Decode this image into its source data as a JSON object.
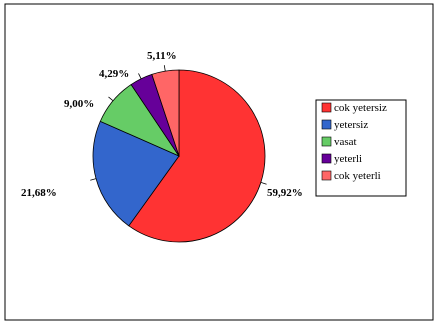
{
  "chart_data": {
    "type": "pie",
    "categories": [
      "cok yetersiz",
      "yetersiz",
      "vasat",
      "yeterli",
      "cok yeterli"
    ],
    "values": [
      59.92,
      21.68,
      9.0,
      4.29,
      5.11
    ],
    "data_labels": [
      "59,92%",
      "21,68%",
      "9,00%",
      "4,29%",
      "5,11%"
    ],
    "colors": [
      "#ff3333",
      "#3366cc",
      "#66cc66",
      "#660099",
      "#ff6666"
    ],
    "slice_order": "clockwise from top",
    "legend_position": "right",
    "title": ""
  }
}
